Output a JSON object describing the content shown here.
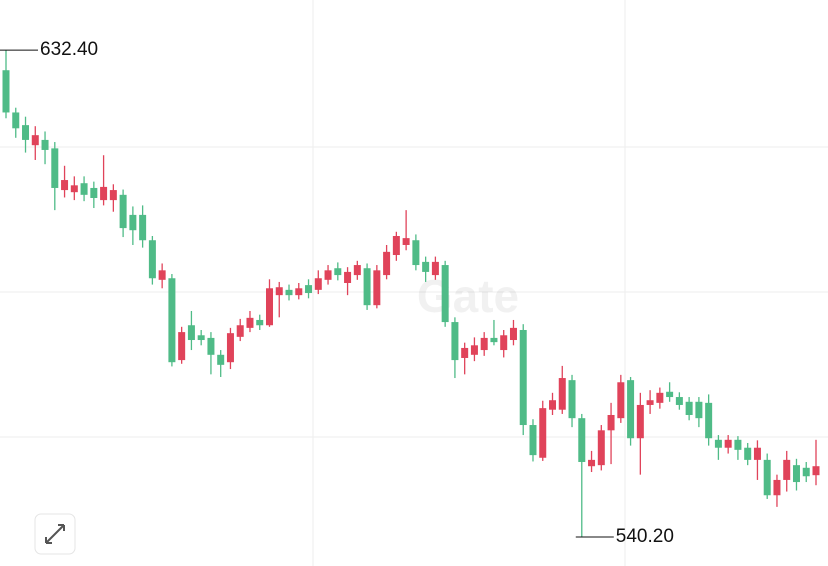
{
  "chart_data": {
    "type": "candlestick",
    "watermark": "Gate",
    "ylim": [
      534.7,
      641.9
    ],
    "colors": {
      "up": "#e0435a",
      "down": "#4fbb87"
    },
    "annotations": [
      {
        "value": 632.4,
        "label": "632.40"
      },
      {
        "value": 540.2,
        "label": "540.20"
      }
    ],
    "series": [
      {
        "open": [
          628.6,
          620.6,
          618.2,
          614.4,
          615.4,
          613.8,
          605.9,
          605.5,
          607.2,
          606.3,
          604.0,
          604.0,
          605.0,
          601.2,
          601.2,
          596.4,
          588.9,
          589.2,
          573.7,
          580.3,
          578.4,
          577.9,
          574.7,
          573.3,
          578.1,
          579.8,
          581.3,
          580.3,
          586.0,
          587.0,
          586.0,
          587.9,
          587.0,
          588.9,
          591.1,
          588.3,
          589.8,
          591.1,
          584.1,
          589.8,
          593.6,
          595.5,
          596.4,
          592.3,
          589.8,
          591.7,
          580.9,
          574.1,
          574.7,
          575.6,
          577.9,
          575.6,
          577.5,
          579.4,
          561.4,
          555.2,
          564.3,
          564.3,
          569.9,
          562.7,
          553.6,
          553.8,
          560.4,
          562.7,
          569.9,
          558.9,
          565.2,
          565.6,
          567.7,
          566.7,
          565.8,
          565.8,
          565.6,
          558.6,
          557.1,
          558.6,
          557.1,
          554.8,
          554.8,
          548.1,
          551.0,
          553.8,
          553.3,
          551.9
        ],
        "high": [
          632.4,
          621.5,
          619.8,
          618.0,
          617.0,
          615.0,
          610.5,
          608.5,
          608.5,
          607.5,
          612.5,
          607.0,
          606.0,
          602.8,
          603.0,
          597.2,
          592.0,
          590.0,
          580.0,
          583.0,
          579.4,
          579.0,
          575.6,
          579.8,
          581.5,
          583.0,
          582.3,
          589.0,
          588.5,
          588.0,
          588.3,
          589.0,
          590.7,
          591.7,
          592.2,
          591.3,
          592.5,
          592.0,
          591.7,
          595.5,
          598.0,
          602.1,
          597.5,
          593.3,
          593.3,
          592.5,
          581.8,
          577.0,
          578.0,
          579.0,
          581.3,
          579.4,
          581.3,
          580.5,
          562.5,
          566.0,
          567.5,
          572.6,
          570.9,
          563.5,
          556.5,
          561.4,
          565.6,
          570.9,
          570.5,
          567.5,
          568.0,
          568.5,
          569.5,
          567.6,
          566.7,
          566.7,
          567.2,
          559.5,
          559.5,
          559.3,
          558.0,
          558.5,
          556.0,
          552.0,
          556.5,
          555.0,
          554.4,
          558.6
        ],
        "low": [
          619.5,
          615.8,
          613.0,
          611.6,
          610.8,
          602.1,
          604.5,
          604.0,
          603.8,
          602.5,
          603.0,
          601.8,
          597.0,
          595.5,
          595.0,
          588.0,
          587.3,
          572.5,
          573.0,
          575.6,
          576.5,
          571.0,
          570.5,
          572.0,
          577.3,
          579.0,
          579.4,
          580.0,
          581.8,
          585.0,
          585.2,
          585.4,
          586.2,
          588.0,
          588.8,
          586.0,
          588.9,
          583.2,
          583.5,
          589.0,
          592.5,
          594.5,
          590.7,
          588.5,
          588.9,
          580.0,
          570.3,
          571.0,
          573.5,
          574.5,
          576.5,
          574.2,
          576.5,
          559.5,
          554.5,
          554.6,
          563.3,
          563.5,
          561.0,
          540.2,
          552.5,
          552.8,
          554.0,
          561.8,
          557.5,
          552.0,
          563.5,
          564.5,
          565.8,
          564.3,
          562.3,
          561.0,
          557.5,
          554.8,
          556.0,
          554.8,
          553.8,
          551.0,
          547.4,
          545.9,
          548.8,
          549.0,
          550.6,
          550.0
        ],
        "close": [
          620.6,
          617.6,
          615.4,
          616.3,
          613.5,
          606.3,
          607.8,
          606.8,
          605.0,
          604.4,
          606.5,
          605.9,
          598.7,
          598.3,
          596.4,
          589.2,
          590.7,
          573.3,
          579.0,
          577.5,
          577.5,
          574.7,
          572.8,
          578.8,
          580.3,
          581.7,
          580.3,
          587.3,
          587.5,
          586.0,
          587.3,
          586.4,
          589.2,
          590.7,
          589.8,
          590.4,
          591.7,
          584.1,
          590.7,
          594.2,
          597.2,
          596.8,
          591.7,
          590.4,
          592.3,
          580.9,
          573.7,
          576.0,
          576.5,
          577.9,
          577.1,
          578.4,
          579.8,
          561.4,
          555.7,
          564.6,
          566.1,
          570.3,
          562.7,
          554.4,
          554.8,
          560.4,
          563.3,
          569.5,
          558.9,
          565.2,
          566.1,
          567.5,
          566.7,
          565.2,
          563.3,
          562.7,
          558.9,
          557.1,
          558.6,
          556.7,
          554.8,
          557.1,
          548.1,
          551.0,
          554.8,
          550.6,
          551.7,
          553.6
        ]
      }
    ]
  }
}
